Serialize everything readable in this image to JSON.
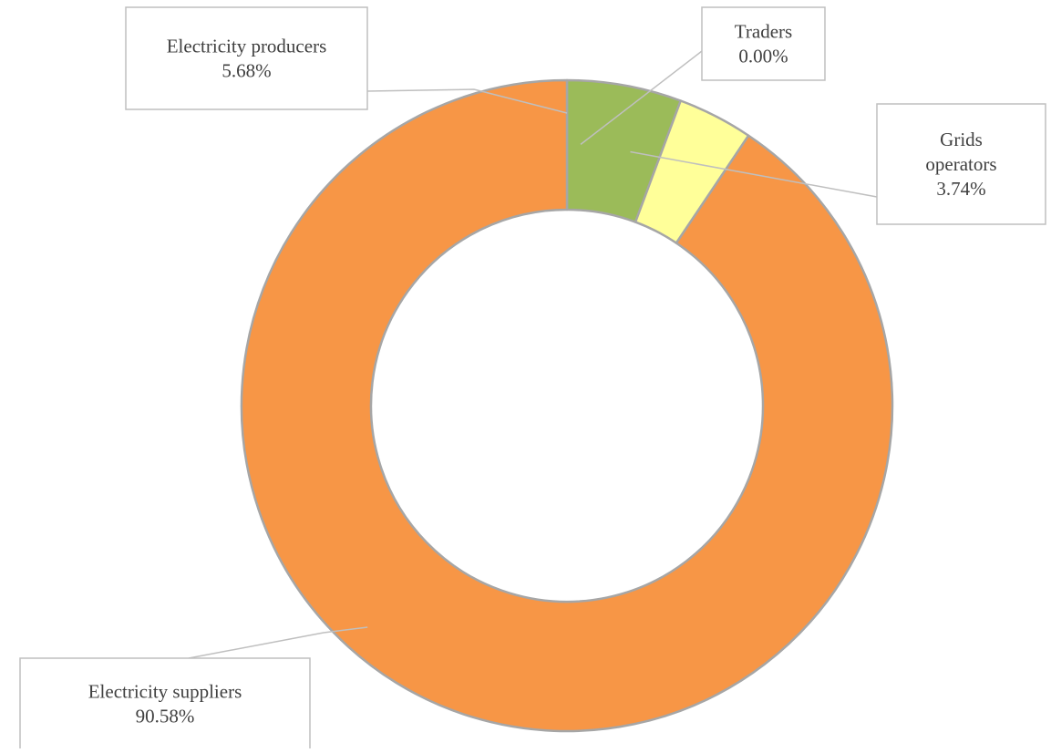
{
  "chart_data": {
    "type": "pie",
    "variant": "doughnut",
    "legend": "none",
    "slices": [
      {
        "name": "Electricity producers",
        "label": "Electricity producers",
        "value": 5.68,
        "value_label": "5.68%",
        "color": "#9BBB59"
      },
      {
        "name": "Grids operators",
        "label": "Grids operators",
        "value": 3.74,
        "value_label": "3.74%",
        "color": "#FFFF99"
      },
      {
        "name": "Electricity suppliers",
        "label": "Electricity suppliers",
        "value": 90.58,
        "value_label": "90.58%",
        "color": "#F79646"
      },
      {
        "name": "Traders",
        "label": "Traders",
        "value": 0.0,
        "value_label": "0.00%",
        "color": "#4F81BD"
      }
    ],
    "slice_border_color": "#A6A6A6",
    "callout_border_color": "#BFBFBF"
  }
}
